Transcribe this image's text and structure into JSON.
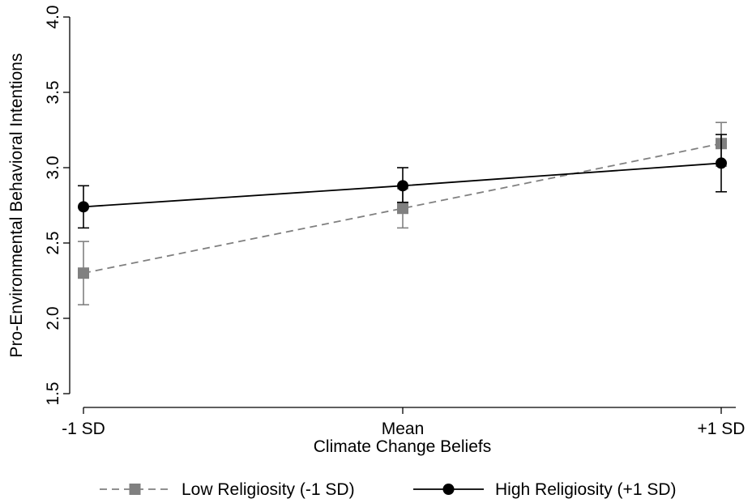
{
  "chart_data": {
    "type": "line",
    "xlabel": "Climate Change Beliefs",
    "ylabel": "Pro-Environmental Behavioral Intentions",
    "categories": [
      "-1 SD",
      "Mean",
      "+1 SD"
    ],
    "ylim": [
      1.5,
      4.0
    ],
    "yticks": [
      "1.5",
      "2.0",
      "2.5",
      "3.0",
      "3.5",
      "4.0"
    ],
    "grid": false,
    "legend_position": "bottom",
    "series": [
      {
        "name": "Low Religiosity (-1 SD)",
        "values": [
          2.3,
          2.73,
          3.16
        ],
        "ci_lower": [
          2.09,
          2.6,
          3.01
        ],
        "ci_upper": [
          2.51,
          2.86,
          3.3
        ],
        "color": "#808080",
        "line_style": "dashed",
        "marker": "square"
      },
      {
        "name": "High Religiosity (+1 SD)",
        "values": [
          2.74,
          2.88,
          3.03
        ],
        "ci_lower": [
          2.6,
          2.77,
          2.84
        ],
        "ci_upper": [
          2.88,
          3.0,
          3.22
        ],
        "color": "#000000",
        "line_style": "solid",
        "marker": "circle"
      }
    ]
  }
}
